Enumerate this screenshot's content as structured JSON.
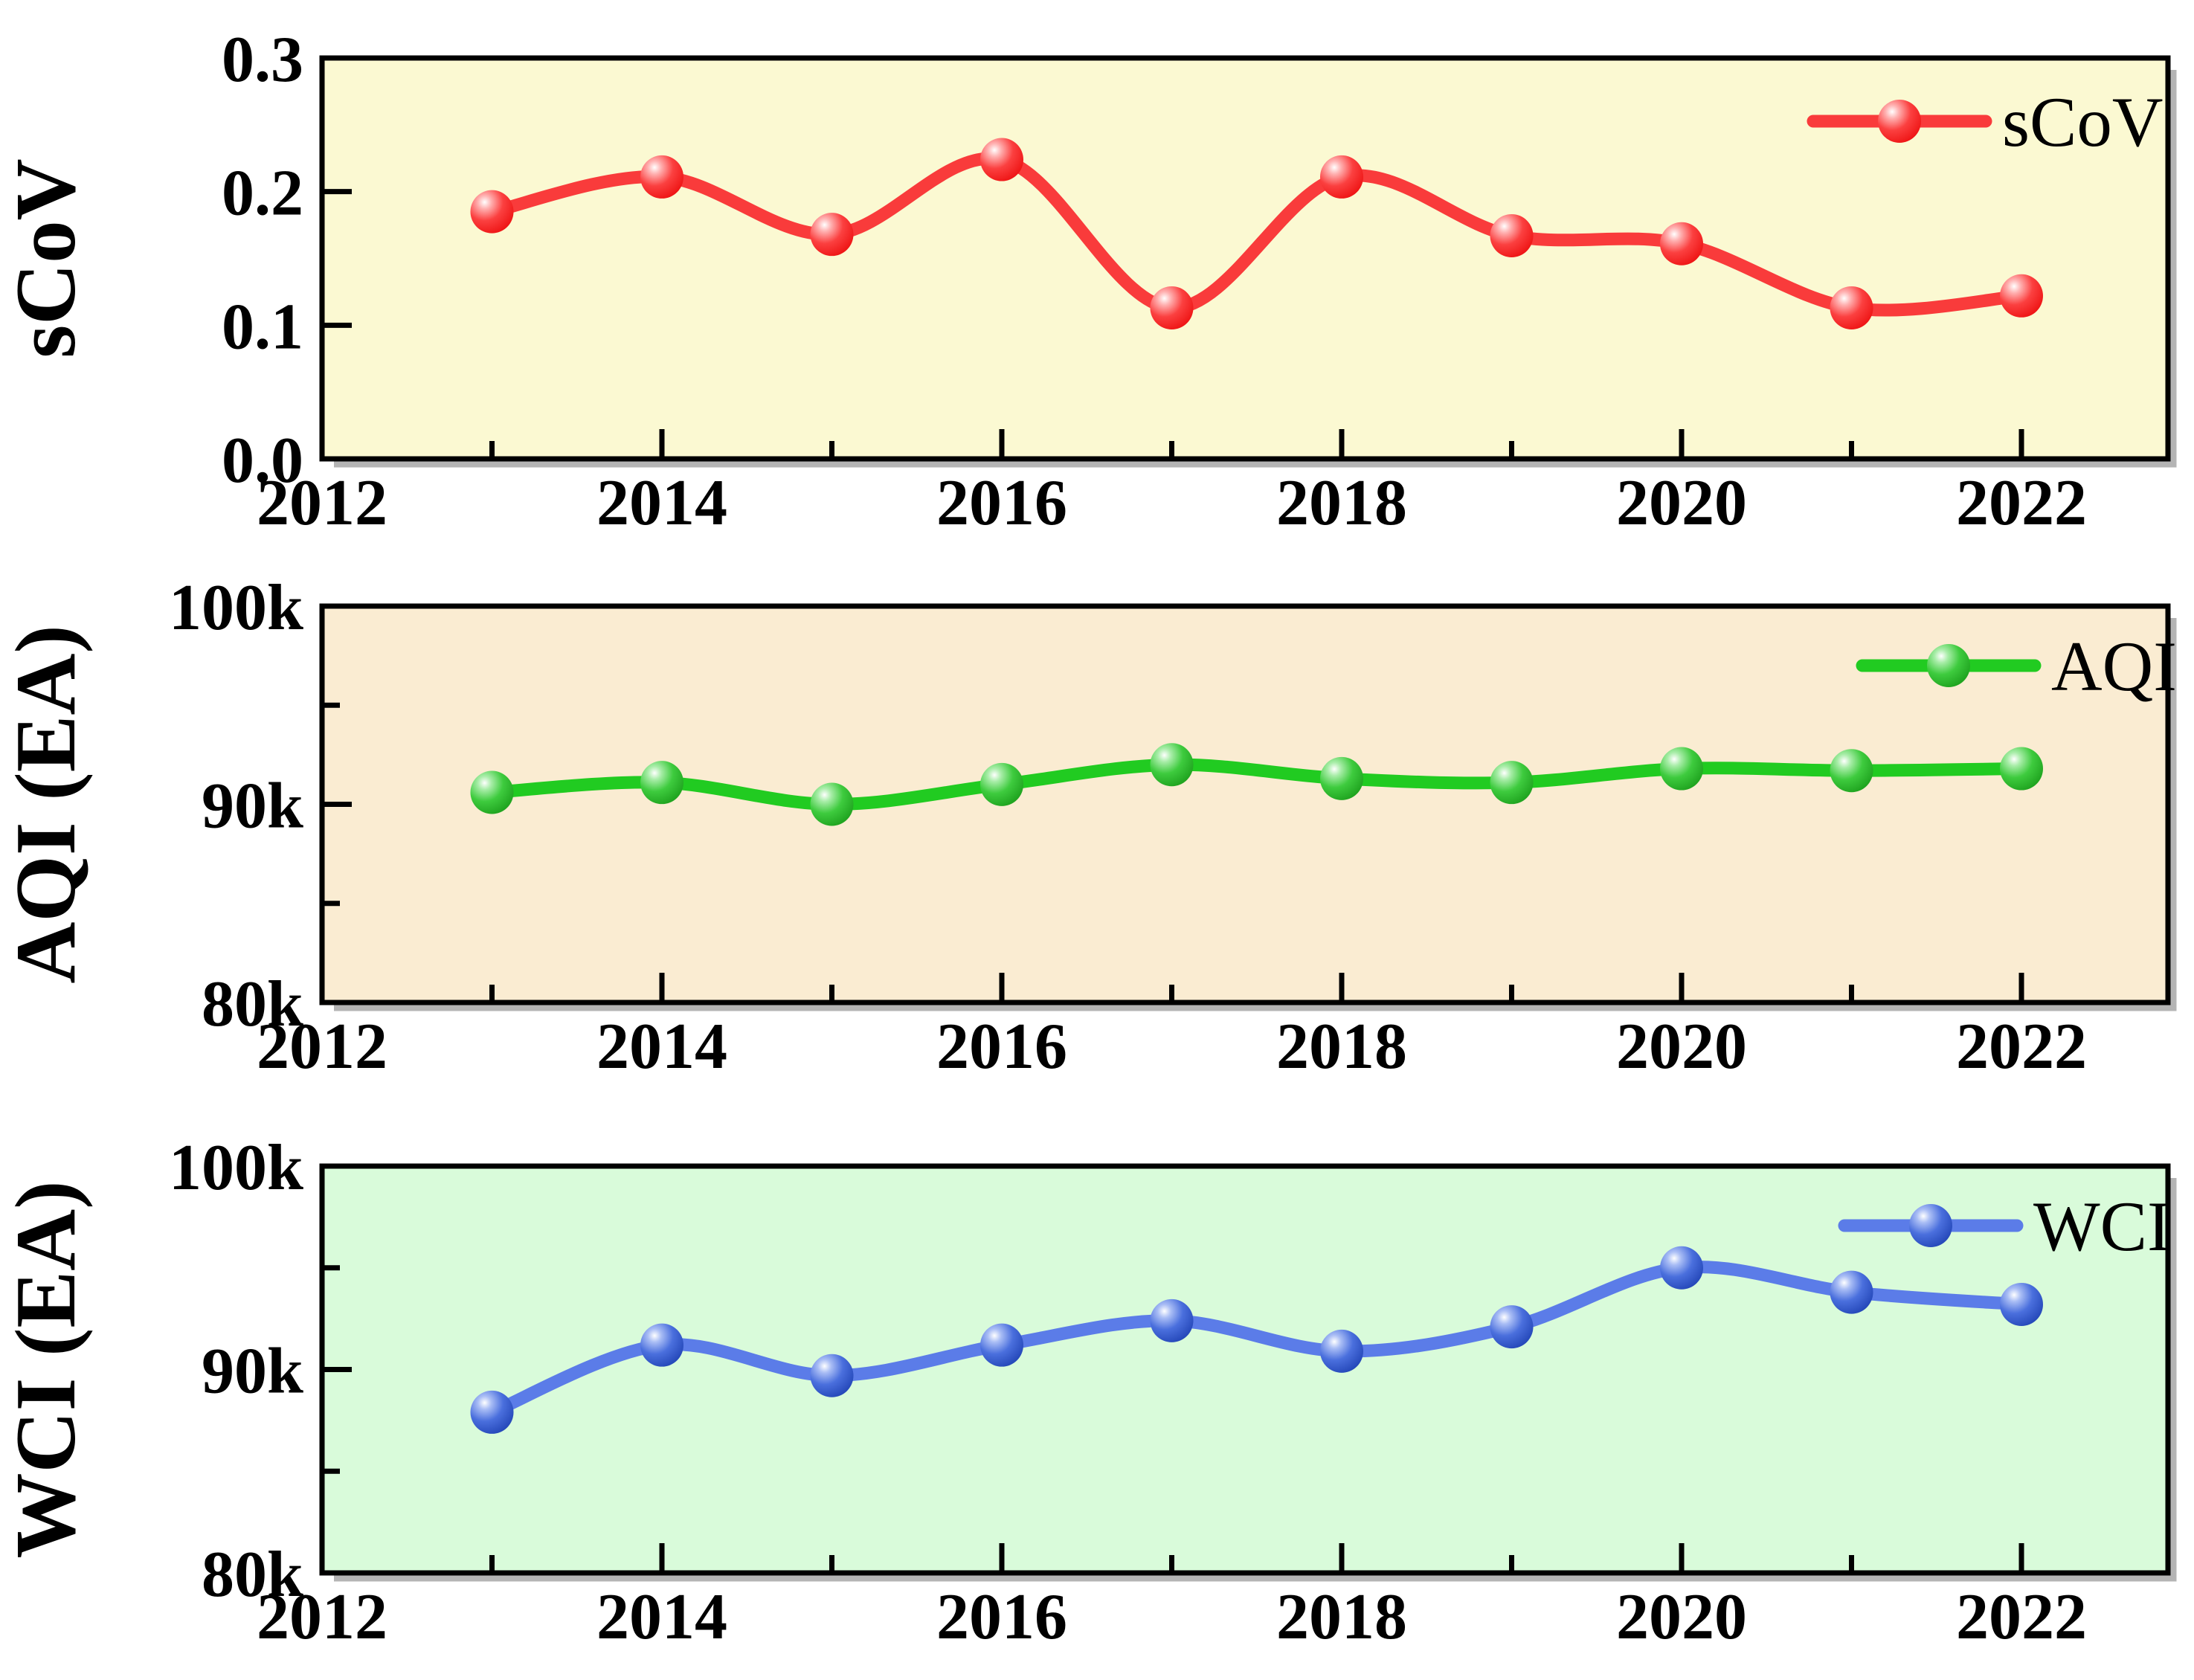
{
  "figure": {
    "background": "#ffffff",
    "frame_color": "#000000",
    "x_axis_years_labeled": [
      "2012",
      "2014",
      "2016",
      "2018",
      "2020",
      "2022"
    ]
  },
  "chart_data": [
    {
      "type": "line",
      "id": "scov",
      "ylabel": "sCoV",
      "legend_label": "sCoV",
      "legend_position": "top-right",
      "grid": false,
      "line_color": "#f93b3b",
      "marker_gradient": [
        "#ffffff",
        "#ffb0b0",
        "#fb4040",
        "#ee1414"
      ],
      "plot_bg": "#fbf9d2",
      "x": [
        2013,
        2014,
        2015,
        2016,
        2017,
        2018,
        2019,
        2020,
        2021,
        2022
      ],
      "values": [
        0.185,
        0.211,
        0.168,
        0.224,
        0.113,
        0.211,
        0.167,
        0.161,
        0.113,
        0.122
      ],
      "ylim": [
        0.0,
        0.3
      ],
      "xlim": [
        2012,
        2022.86
      ],
      "yticks": [
        {
          "value": 0.0,
          "label": "0.0",
          "mark": "none"
        },
        {
          "value": 0.1,
          "label": "0.1",
          "mark": "major"
        },
        {
          "value": 0.2,
          "label": "0.2",
          "mark": "major"
        },
        {
          "value": 0.3,
          "label": "0.3",
          "mark": "none"
        }
      ],
      "xticks": [
        {
          "year": 2012,
          "label": "2012",
          "mark": "none"
        },
        {
          "year": 2013,
          "label": "",
          "mark": "minor"
        },
        {
          "year": 2014,
          "label": "2014",
          "mark": "major"
        },
        {
          "year": 2015,
          "label": "",
          "mark": "minor"
        },
        {
          "year": 2016,
          "label": "2016",
          "mark": "major"
        },
        {
          "year": 2017,
          "label": "",
          "mark": "minor"
        },
        {
          "year": 2018,
          "label": "2018",
          "mark": "major"
        },
        {
          "year": 2019,
          "label": "",
          "mark": "minor"
        },
        {
          "year": 2020,
          "label": "2020",
          "mark": "major"
        },
        {
          "year": 2021,
          "label": "",
          "mark": "minor"
        },
        {
          "year": 2022,
          "label": "2022",
          "mark": "major"
        }
      ]
    },
    {
      "type": "line",
      "id": "aqi",
      "ylabel": "AQI (EA)",
      "legend_label": "AQI",
      "legend_position": "top-right",
      "grid": false,
      "line_color": "#21cb21",
      "marker_gradient": [
        "#ffffff",
        "#a8eda8",
        "#3ecb3e",
        "#1ea21e"
      ],
      "plot_bg": "#faecd2",
      "values_unit": "k (thousands, EA)",
      "x": [
        2013,
        2014,
        2015,
        2016,
        2017,
        2018,
        2019,
        2020,
        2021,
        2022
      ],
      "values": [
        90.6,
        91.1,
        90.0,
        91.0,
        92.0,
        91.3,
        91.1,
        91.8,
        91.7,
        91.8
      ],
      "ylim": [
        80,
        100
      ],
      "xlim": [
        2012,
        2022.86
      ],
      "yticks": [
        {
          "value": 80,
          "label": "80k",
          "mark": "none"
        },
        {
          "value": 85,
          "label": "",
          "mark": "minor"
        },
        {
          "value": 90,
          "label": "90k",
          "mark": "major"
        },
        {
          "value": 95,
          "label": "",
          "mark": "minor"
        },
        {
          "value": 100,
          "label": "100k",
          "mark": "none"
        }
      ],
      "xticks": [
        {
          "year": 2012,
          "label": "2012",
          "mark": "none"
        },
        {
          "year": 2013,
          "label": "",
          "mark": "minor"
        },
        {
          "year": 2014,
          "label": "2014",
          "mark": "major"
        },
        {
          "year": 2015,
          "label": "",
          "mark": "minor"
        },
        {
          "year": 2016,
          "label": "2016",
          "mark": "major"
        },
        {
          "year": 2017,
          "label": "",
          "mark": "minor"
        },
        {
          "year": 2018,
          "label": "2018",
          "mark": "major"
        },
        {
          "year": 2019,
          "label": "",
          "mark": "minor"
        },
        {
          "year": 2020,
          "label": "2020",
          "mark": "major"
        },
        {
          "year": 2021,
          "label": "",
          "mark": "minor"
        },
        {
          "year": 2022,
          "label": "2022",
          "mark": "major"
        }
      ]
    },
    {
      "type": "line",
      "id": "wci",
      "ylabel": "WCI (EA)",
      "legend_label": "WCI",
      "legend_position": "top-right",
      "grid": false,
      "line_color": "#5b7ce8",
      "marker_gradient": [
        "#ffffff",
        "#a9bdf5",
        "#4a6fdd",
        "#2447b8"
      ],
      "plot_bg": "#d9fbda",
      "values_unit": "k (thousands, EA)",
      "x": [
        2013,
        2014,
        2015,
        2016,
        2017,
        2018,
        2019,
        2020,
        2021,
        2022
      ],
      "values": [
        87.9,
        91.2,
        89.7,
        91.2,
        92.4,
        90.9,
        92.1,
        95.0,
        93.8,
        93.2
      ],
      "ylim": [
        80,
        100
      ],
      "xlim": [
        2012,
        2022.86
      ],
      "yticks": [
        {
          "value": 80,
          "label": "80k",
          "mark": "none"
        },
        {
          "value": 85,
          "label": "",
          "mark": "minor"
        },
        {
          "value": 90,
          "label": "90k",
          "mark": "major"
        },
        {
          "value": 95,
          "label": "",
          "mark": "minor"
        },
        {
          "value": 100,
          "label": "100k",
          "mark": "none"
        }
      ],
      "xticks": [
        {
          "year": 2012,
          "label": "2012",
          "mark": "none"
        },
        {
          "year": 2013,
          "label": "",
          "mark": "minor"
        },
        {
          "year": 2014,
          "label": "2014",
          "mark": "major"
        },
        {
          "year": 2015,
          "label": "",
          "mark": "minor"
        },
        {
          "year": 2016,
          "label": "2016",
          "mark": "major"
        },
        {
          "year": 2017,
          "label": "",
          "mark": "minor"
        },
        {
          "year": 2018,
          "label": "2018",
          "mark": "major"
        },
        {
          "year": 2019,
          "label": "",
          "mark": "minor"
        },
        {
          "year": 2020,
          "label": "2020",
          "mark": "major"
        },
        {
          "year": 2021,
          "label": "",
          "mark": "minor"
        },
        {
          "year": 2022,
          "label": "2022",
          "mark": "major"
        }
      ]
    }
  ]
}
